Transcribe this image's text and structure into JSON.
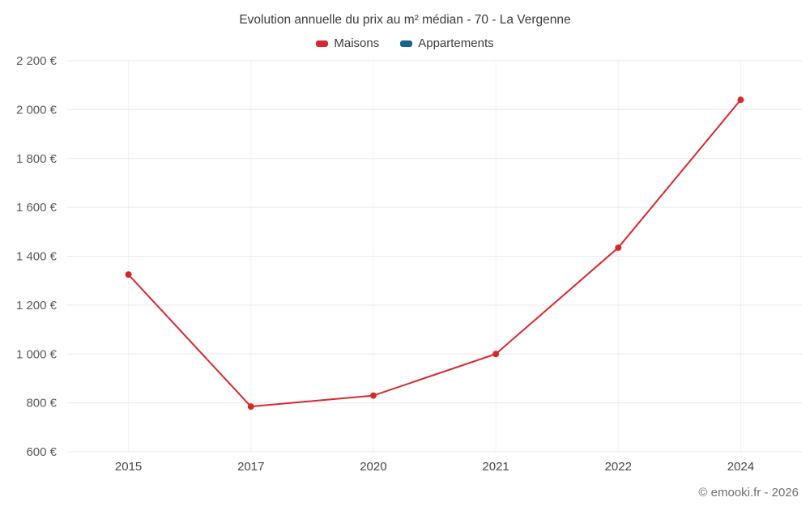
{
  "chart": {
    "title": "Evolution annuelle du prix au m² médian - 70 - La Vergenne",
    "footer": "© emooki.fr - 2026"
  },
  "chart_data": {
    "type": "line",
    "title": "Evolution annuelle du prix au m² médian - 70 - La Vergenne",
    "categories": [
      "2015",
      "2017",
      "2020",
      "2021",
      "2022",
      "2024"
    ],
    "series": [
      {
        "name": "Maisons",
        "color": "#d7282f",
        "values": [
          1325,
          785,
          830,
          1000,
          1435,
          2040
        ]
      },
      {
        "name": "Appartements",
        "color": "#17648d",
        "values": []
      }
    ],
    "xlabel": "",
    "ylabel": "",
    "ylim": [
      600,
      2200
    ],
    "ytick_step": 200,
    "ytick_labels": [
      "600 €",
      "800 €",
      "1 000 €",
      "1 200 €",
      "1 400 €",
      "1 600 €",
      "1 800 €",
      "2 000 €",
      "2 200 €"
    ],
    "grid": true,
    "legend_position": "top",
    "annotation": "© emooki.fr - 2026"
  }
}
